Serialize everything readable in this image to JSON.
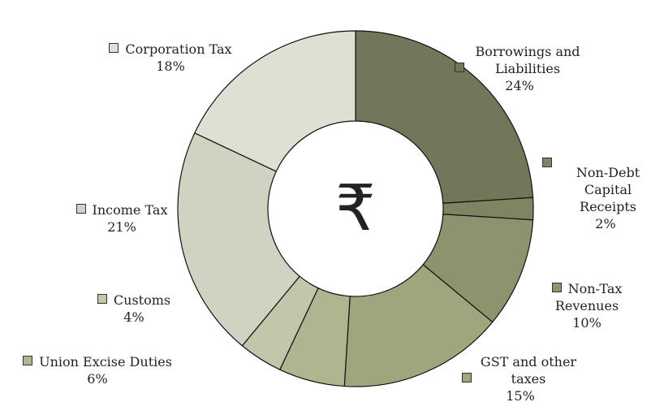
{
  "chart_data": {
    "type": "pie",
    "donut": true,
    "center_symbol": "₹",
    "start": "top, clockwise",
    "slices": [
      {
        "label": "Borrowings and Liabilities",
        "value": 24,
        "display": "24%",
        "color": "#72775a"
      },
      {
        "label": "Non-Debt Capital Receipts",
        "value": 2,
        "display": "2%",
        "color": "#7f8563"
      },
      {
        "label": "Non-Tax Revenues",
        "value": 10,
        "display": "10%",
        "color": "#8f936d"
      },
      {
        "label": "GST and other taxes",
        "value": 15,
        "display": "15%",
        "color": "#a0a57d"
      },
      {
        "label": "Union Excise Duties",
        "value": 6,
        "display": "6%",
        "color": "#b0b48f"
      },
      {
        "label": "Customs",
        "value": 4,
        "display": "4%",
        "color": "#c3c6ab"
      },
      {
        "label": "Income Tax",
        "value": 21,
        "display": "21%",
        "color": "#d0d3c1"
      },
      {
        "label": "Corporation Tax",
        "value": 18,
        "display": "18%",
        "color": "#dfe0d3"
      }
    ]
  }
}
